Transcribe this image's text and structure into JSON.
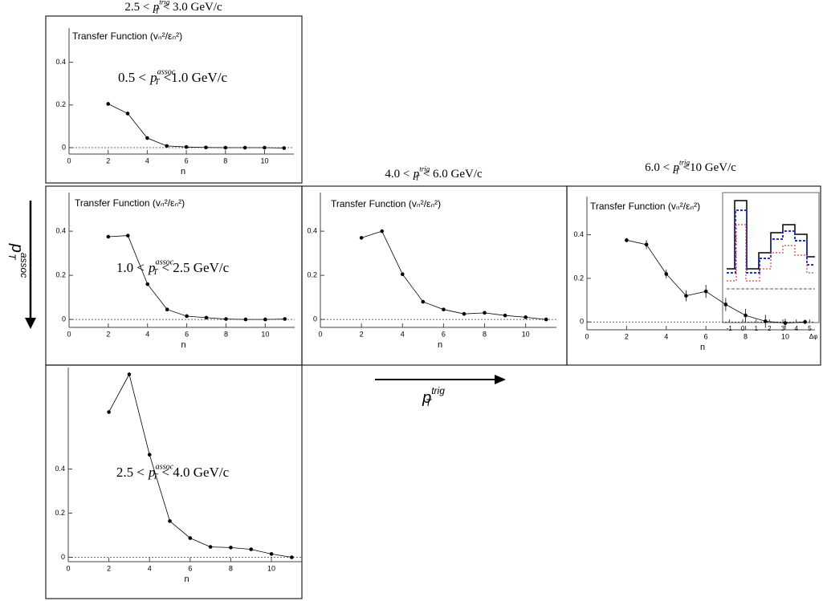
{
  "chart_data": [
    {
      "type": "line",
      "header": {
        "lo": "2.5 <",
        "p": "p",
        "sub": "T",
        "sup": "trig",
        "hi": "< 3.0 GeV/c"
      },
      "title": "Transfer Function (vₙ²/εₙ²)",
      "annotation": {
        "lo": "0.5 <",
        "p": "p",
        "sub": "T",
        "sup": "assoc",
        "hi": "<1.0 GeV/c"
      },
      "x": [
        2,
        3,
        4,
        5,
        6,
        7,
        8,
        9,
        10,
        11
      ],
      "values": [
        0.205,
        0.16,
        0.045,
        0.008,
        0.003,
        0.001,
        0.0,
        0.0,
        0.0,
        -0.002
      ],
      "xlim": [
        0,
        11.5
      ],
      "ylim": [
        -0.03,
        0.56
      ],
      "xticks": [
        0,
        2,
        4,
        6,
        8,
        10
      ],
      "yticks": [
        0,
        0.2,
        0.4
      ],
      "xlabel": "n",
      "color": "#000000",
      "zero_line": true
    },
    {
      "type": "line",
      "title": "Transfer Function (vₙ²/εₙ²)",
      "annotation": {
        "lo": "1.0 <",
        "p": "p",
        "sub": "T",
        "sup": "assoc",
        "hi": "< 2.5 GeV/c"
      },
      "x": [
        2,
        3,
        4,
        5,
        6,
        7,
        8,
        9,
        10,
        11
      ],
      "values": [
        0.375,
        0.38,
        0.16,
        0.045,
        0.015,
        0.008,
        0.002,
        0.0,
        0.0,
        0.002
      ],
      "xlim": [
        0,
        11.5
      ],
      "ylim": [
        -0.036,
        0.575
      ],
      "xticks": [
        0,
        2,
        4,
        6,
        8,
        10
      ],
      "yticks": [
        0,
        0.2,
        0.4
      ],
      "xlabel": "n",
      "color": "#000000",
      "zero_line": true
    },
    {
      "type": "line",
      "header": {
        "lo": "4.0 <",
        "p": "p",
        "sub": "T",
        "sup": "trig",
        "hi": "< 6.0 GeV/c"
      },
      "title": "Transfer Function (vₙ²/εₙ²)",
      "x": [
        2,
        3,
        4,
        5,
        6,
        7,
        8,
        9,
        10,
        11
      ],
      "values": [
        0.37,
        0.4,
        0.205,
        0.08,
        0.045,
        0.025,
        0.03,
        0.018,
        0.01,
        0.0
      ],
      "xlim": [
        0,
        11.5
      ],
      "ylim": [
        -0.036,
        0.575
      ],
      "xticks": [
        0,
        2,
        4,
        6,
        8,
        10
      ],
      "yticks": [
        0,
        0.2,
        0.4
      ],
      "xlabel": "n",
      "color": "#000000",
      "zero_line": true
    },
    {
      "type": "line",
      "header": {
        "lo": "6.0 <",
        "p": "p",
        "sub": "T",
        "sup": "trig",
        "hi": "<10 GeV/c"
      },
      "title": "Transfer Function (vₙ²/εₙ²)",
      "x": [
        2,
        3,
        4,
        5,
        6,
        7,
        8,
        9,
        10,
        11
      ],
      "values": [
        0.375,
        0.355,
        0.22,
        0.12,
        0.14,
        0.08,
        0.03,
        0.003,
        -0.005,
        0.0
      ],
      "errors": [
        0.01,
        0.02,
        0.02,
        0.025,
        0.03,
        0.03,
        0.03,
        0.03,
        0.02,
        0.01
      ],
      "xlim": [
        0,
        11.5
      ],
      "ylim": [
        -0.036,
        0.575
      ],
      "xticks": [
        0,
        2,
        4,
        6,
        8,
        10
      ],
      "yticks": [
        0,
        0.2,
        0.4
      ],
      "xlabel": "n",
      "color": "#000000",
      "zero_line": true,
      "inset": {
        "xticks": [
          -1,
          0,
          1,
          2,
          3,
          4,
          5
        ],
        "xlim": [
          -1.2,
          5.4
        ],
        "xlabel": "Δφ"
      }
    },
    {
      "type": "line",
      "annotation": {
        "lo": "2.5 <",
        "p": "p",
        "sub": "T",
        "sup": "assoc",
        "hi": "< 4.0 GeV/c"
      },
      "x": [
        2,
        3,
        4,
        5,
        6,
        7,
        8,
        9,
        10,
        11
      ],
      "values": [
        0.658,
        0.829,
        0.465,
        0.164,
        0.087,
        0.047,
        0.044,
        0.036,
        0.015,
        0.0
      ],
      "xlim": [
        0,
        11.5
      ],
      "ylim": [
        -0.02,
        0.86
      ],
      "xticks": [
        0,
        2,
        4,
        6,
        8,
        10
      ],
      "yticks": [
        0,
        0.2,
        0.4
      ],
      "xlabel": "n",
      "color": "#000000",
      "zero_line": true
    }
  ],
  "row_label": {
    "p": "p",
    "sub": "T",
    "sup": "assoc"
  },
  "column_label": {
    "p": "p",
    "sub": "T",
    "sup": "trig"
  }
}
